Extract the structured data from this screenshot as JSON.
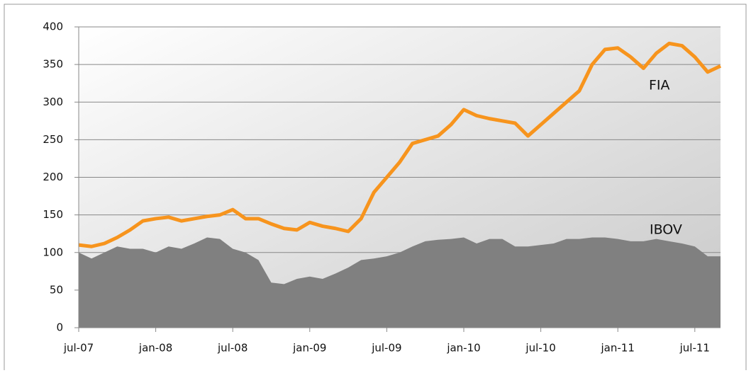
{
  "chart_data": {
    "type": "line_area",
    "categories": [
      "jul-07",
      null,
      null,
      null,
      null,
      null,
      "jan-08",
      null,
      null,
      null,
      null,
      null,
      "jul-08",
      null,
      null,
      null,
      null,
      null,
      "jan-09",
      null,
      null,
      null,
      null,
      null,
      "jul-09",
      null,
      null,
      null,
      null,
      null,
      "jan-10",
      null,
      null,
      null,
      null,
      null,
      "jul-10",
      null,
      null,
      null,
      null,
      null,
      "jan-11",
      null,
      null,
      null,
      null,
      null,
      "jul-11",
      null,
      null
    ],
    "series": [
      {
        "name": "FIA",
        "color": "#f7941d",
        "style": "line",
        "values": [
          110,
          108,
          112,
          120,
          130,
          142,
          145,
          147,
          142,
          145,
          148,
          150,
          157,
          145,
          145,
          138,
          132,
          130,
          140,
          135,
          132,
          128,
          145,
          180,
          200,
          220,
          245,
          250,
          255,
          270,
          290,
          282,
          278,
          275,
          272,
          255,
          270,
          285,
          300,
          315,
          350,
          370,
          372,
          360,
          345,
          365,
          378,
          375,
          360,
          340,
          348
        ]
      },
      {
        "name": "IBOV",
        "color": "#808080",
        "style": "area",
        "values": [
          100,
          92,
          100,
          108,
          105,
          105,
          100,
          108,
          105,
          112,
          120,
          118,
          105,
          100,
          90,
          60,
          58,
          65,
          68,
          65,
          72,
          80,
          90,
          92,
          95,
          100,
          108,
          115,
          117,
          118,
          120,
          112,
          118,
          118,
          108,
          108,
          110,
          112,
          118,
          118,
          120,
          120,
          118,
          115,
          115,
          118,
          115,
          112,
          108,
          95,
          95
        ]
      }
    ],
    "annotations": [
      {
        "text": "FIA"
      },
      {
        "text": "IBOV"
      }
    ],
    "ylim": [
      0,
      400
    ],
    "yticks": [
      0,
      50,
      100,
      150,
      200,
      250,
      300,
      350,
      400
    ],
    "grid": true
  }
}
